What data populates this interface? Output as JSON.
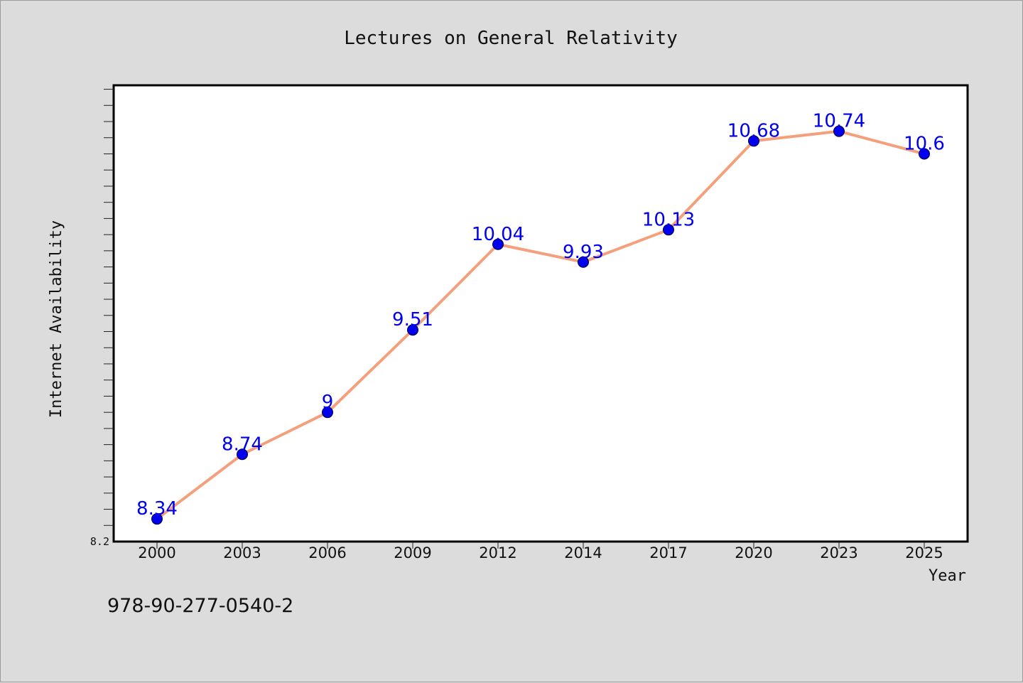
{
  "chart_data": {
    "type": "line",
    "title": "Lectures on General Relativity",
    "xlabel": "Year",
    "ylabel": "Internet Availability",
    "categories": [
      "2000",
      "2003",
      "2006",
      "2009",
      "2012",
      "2014",
      "2017",
      "2020",
      "2023",
      "2025"
    ],
    "series": [
      {
        "values": [
          8.34,
          8.74,
          9,
          9.51,
          10.04,
          9.93,
          10.13,
          10.68,
          10.74,
          10.6
        ],
        "data_labels": [
          "8.34",
          "8.74",
          "9",
          "9.51",
          "10.04",
          "9.93",
          "10.13",
          "10.68",
          "10.74",
          "10.6"
        ],
        "line_color": "#f4a07c",
        "marker_color": "#0000ee"
      }
    ],
    "ylim": [
      8.2,
      11.0
    ],
    "y_tick_labels": [
      "8.2"
    ],
    "grid": false,
    "legend": "none"
  },
  "footer": {
    "isbn": "978-90-277-0540-2"
  }
}
